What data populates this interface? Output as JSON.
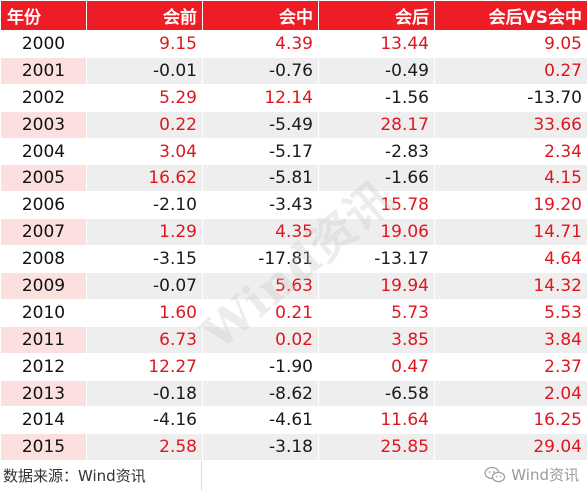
{
  "table": {
    "headers": [
      "年份",
      "会前",
      "会中",
      "会后",
      "会后VS会中"
    ],
    "rows": [
      [
        "2000",
        "9.15",
        "4.39",
        "13.44",
        "9.05"
      ],
      [
        "2001",
        "-0.01",
        "-0.76",
        "-0.49",
        "0.27"
      ],
      [
        "2002",
        "5.29",
        "12.14",
        "-1.56",
        "-13.70"
      ],
      [
        "2003",
        "0.22",
        "-5.49",
        "28.17",
        "33.66"
      ],
      [
        "2004",
        "3.04",
        "-5.17",
        "-2.83",
        "2.34"
      ],
      [
        "2005",
        "16.62",
        "-5.81",
        "-1.66",
        "4.15"
      ],
      [
        "2006",
        "-2.10",
        "-3.43",
        "15.78",
        "19.20"
      ],
      [
        "2007",
        "1.29",
        "4.35",
        "19.06",
        "14.71"
      ],
      [
        "2008",
        "-3.15",
        "-17.81",
        "-13.17",
        "4.64"
      ],
      [
        "2009",
        "-0.07",
        "5.63",
        "19.94",
        "14.32"
      ],
      [
        "2010",
        "1.60",
        "0.21",
        "5.73",
        "5.53"
      ],
      [
        "2011",
        "6.73",
        "0.02",
        "3.85",
        "3.84"
      ],
      [
        "2012",
        "12.27",
        "-1.90",
        "0.47",
        "2.37"
      ],
      [
        "2013",
        "-0.18",
        "-8.62",
        "-6.58",
        "2.04"
      ],
      [
        "2014",
        "-4.16",
        "-4.61",
        "11.64",
        "16.25"
      ],
      [
        "2015",
        "2.58",
        "-3.18",
        "25.85",
        "29.04"
      ]
    ]
  },
  "footer": {
    "source": "数据来源：Wind资讯",
    "brand": "Wind资讯",
    "brand_icon": "wechat-icon"
  },
  "watermark": "Wind资讯",
  "colors": {
    "header_bg": "#ee1c25",
    "positive_text": "#e0161e",
    "negative_text": "#1a1a1a",
    "even_row_bg": "#eeeeee",
    "even_year_bg": "#fce0e0"
  }
}
